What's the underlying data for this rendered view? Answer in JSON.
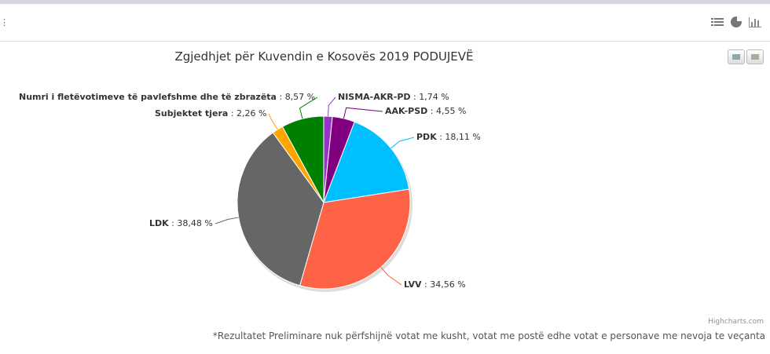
{
  "chart_data": {
    "type": "pie",
    "title": "Zgjedhjet për Kuvendin e Kosovës 2019 PODUJEVË",
    "slices": [
      {
        "name": "NISMA-AKR-PD",
        "value": 1.74,
        "label": "1,74 %",
        "color": "#9932cc"
      },
      {
        "name": "AAK-PSD",
        "value": 4.55,
        "label": "4,55 %",
        "color": "#800080"
      },
      {
        "name": "PDK",
        "value": 18.11,
        "label": "18,11 %",
        "color": "#00bfff"
      },
      {
        "name": "LVV",
        "value": 34.56,
        "label": "34,56 %",
        "color": "#ff6347"
      },
      {
        "name": "LDK",
        "value": 38.48,
        "label": "38,48 %",
        "color": "#666666"
      },
      {
        "name": "Subjektet tjera",
        "value": 2.26,
        "label": "2,26 %",
        "color": "#ffa500"
      },
      {
        "name": "Numri i fletëvotimeve të pavlefshme dhe të zbrazëta",
        "value": 8.57,
        "label": "8,57 %",
        "color": "#008000"
      }
    ],
    "legend": "none"
  },
  "credit": "Highcharts.com",
  "note": "*Rezultatet Preliminare nuk përfshijnë votat me kusht, votat me postë edhe votat e personave me nevoja te veçanta",
  "icons": [
    "list-icon",
    "pie-chart-icon",
    "bar-chart-icon",
    "print-icon",
    "download-icon"
  ]
}
